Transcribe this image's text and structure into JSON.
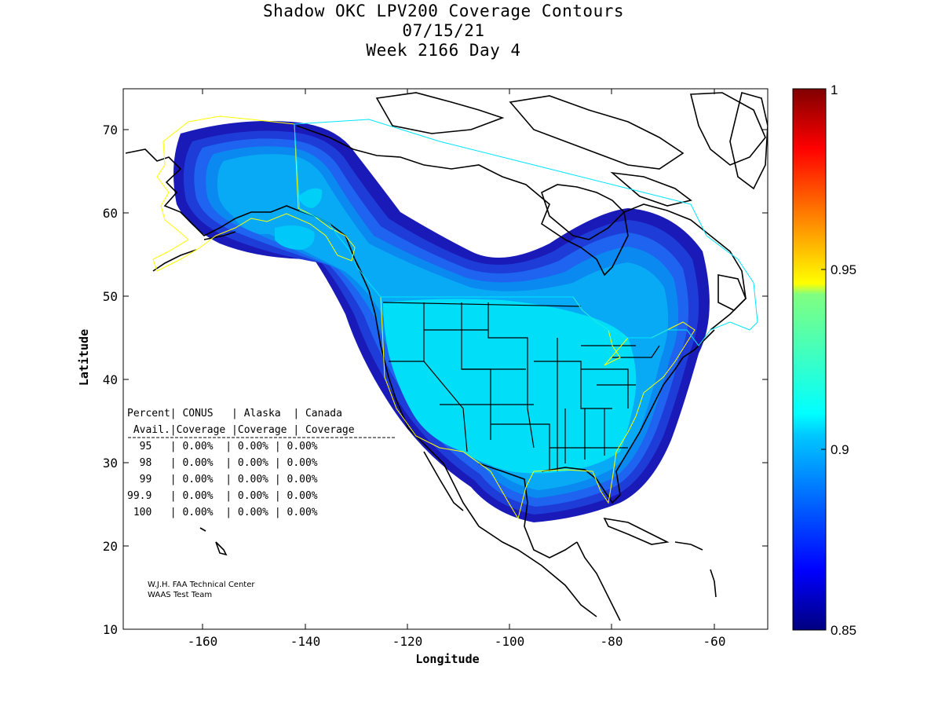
{
  "titles": {
    "line1": "Shadow OKC LPV200 Coverage Contours",
    "line2": "07/15/21",
    "line3": "Week 2166 Day 4"
  },
  "axes": {
    "xlabel": "Longitude",
    "ylabel": "Latitude",
    "xticks": [
      "-160",
      "-140",
      "-120",
      "-100",
      "-80",
      "-60"
    ],
    "yticks": [
      "70",
      "60",
      "50",
      "40",
      "30",
      "20",
      "10"
    ],
    "xlim": [
      -175,
      -50
    ],
    "ylim": [
      10,
      75
    ]
  },
  "colorbar": {
    "labels": [
      "1",
      "0.95",
      "0.9",
      "0.85"
    ],
    "range": [
      0.85,
      1.0
    ],
    "colormap": "jet"
  },
  "table": {
    "header1": "Percent| CONUS   | Alaska  | Canada",
    "header2": " Avail.|Coverage |Coverage | Coverage",
    "rows": [
      "  95   | 0.00%  | 0.00% | 0.00%",
      "  98   | 0.00%  | 0.00% | 0.00%",
      "  99   | 0.00%  | 0.00% | 0.00%",
      "99.9   | 0.00%  | 0.00% | 0.00%",
      " 100   | 0.00%  | 0.00% | 0.00%"
    ]
  },
  "credits": {
    "line1": "W.J.H. FAA Technical Center",
    "line2": "WAAS Test Team"
  },
  "colors": {
    "dark_blue": "#1a1ab8",
    "mid_blue": "#1e50e6",
    "blue": "#1482f0",
    "light_blue": "#0aaaf5",
    "cyan": "#00e0f8",
    "region_boundary_yellow": "#ffff00",
    "region_boundary_cyan": "#00e5ff"
  }
}
